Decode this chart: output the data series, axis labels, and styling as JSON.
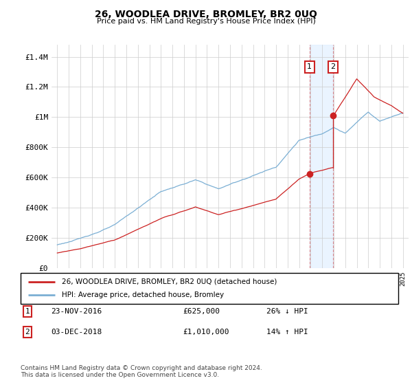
{
  "title": "26, WOODLEA DRIVE, BROMLEY, BR2 0UQ",
  "subtitle": "Price paid vs. HM Land Registry's House Price Index (HPI)",
  "ylabel_ticks": [
    "£0",
    "£200K",
    "£400K",
    "£600K",
    "£800K",
    "£1M",
    "£1.2M",
    "£1.4M"
  ],
  "ytick_values": [
    0,
    200000,
    400000,
    600000,
    800000,
    1000000,
    1200000,
    1400000
  ],
  "ylim": [
    0,
    1480000
  ],
  "xlim_start": 1994.5,
  "xlim_end": 2025.5,
  "hpi_color": "#7bafd4",
  "price_color": "#cc2222",
  "marker1_x": 2016.9,
  "marker1_y": 625000,
  "marker2_x": 2018.92,
  "marker2_y": 1010000,
  "legend_price_label": "26, WOODLEA DRIVE, BROMLEY, BR2 0UQ (detached house)",
  "legend_hpi_label": "HPI: Average price, detached house, Bromley",
  "table_row1": [
    "1",
    "23-NOV-2016",
    "£625,000",
    "26% ↓ HPI"
  ],
  "table_row2": [
    "2",
    "03-DEC-2018",
    "£1,010,000",
    "14% ↑ HPI"
  ],
  "footer": "Contains HM Land Registry data © Crown copyright and database right 2024.\nThis data is licensed under the Open Government Licence v3.0.",
  "background_color": "#ffffff",
  "grid_color": "#cccccc",
  "shade_color": "#ddeeff"
}
